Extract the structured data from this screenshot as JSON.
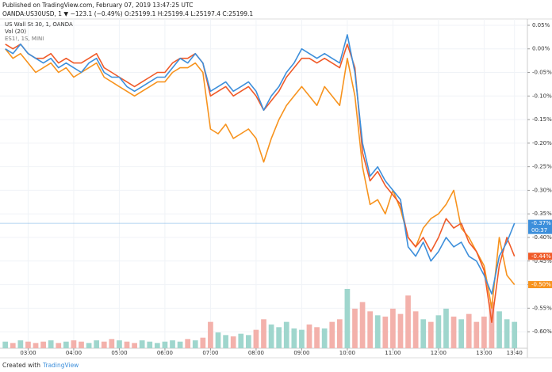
{
  "header": {
    "published": "Published on TradingView.com, February 07, 2019 13:47:25 UTC",
    "symbol_line": "OANDA:US30USD, 1 ▼ −123.1 (−0.49%) O:25199.1 H:25199.4 L:25197.4 C:25199.1"
  },
  "footer": {
    "created": "Created with",
    "brand": "TradingView"
  },
  "chart_data": {
    "type": "line",
    "log_scale": false,
    "grid": true,
    "x": [
      150,
      160,
      170,
      180,
      190,
      200,
      210,
      220,
      230,
      240,
      250,
      260,
      270,
      280,
      290,
      300,
      310,
      320,
      330,
      340,
      350,
      360,
      370,
      380,
      390,
      400,
      410,
      420,
      430,
      440,
      450,
      460,
      470,
      480,
      490,
      500,
      510,
      520,
      530,
      540,
      550,
      560,
      570,
      580,
      590,
      600,
      610,
      620,
      630,
      640,
      650,
      660,
      670,
      680,
      690,
      700,
      710,
      720,
      730,
      740,
      750,
      760,
      770,
      780,
      790,
      800,
      810,
      820
    ],
    "xlim": [
      143,
      837
    ],
    "xticks": [
      {
        "value": 180,
        "label": "03:00"
      },
      {
        "value": 240,
        "label": "04:00"
      },
      {
        "value": 300,
        "label": "05:00"
      },
      {
        "value": 360,
        "label": "06:00"
      },
      {
        "value": 420,
        "label": "07:00"
      },
      {
        "value": 480,
        "label": "08:00"
      },
      {
        "value": 540,
        "label": "09:00"
      },
      {
        "value": 600,
        "label": "10:00"
      },
      {
        "value": 660,
        "label": "11:00"
      },
      {
        "value": 720,
        "label": "12:00"
      },
      {
        "value": 780,
        "label": "13:00"
      },
      {
        "value": 820,
        "label": "13:40"
      }
    ],
    "ylim": [
      -0.63,
      0.06
    ],
    "yticks": [
      {
        "value": 0.05,
        "label": "0.05%"
      },
      {
        "value": 0,
        "label": "0.00%"
      },
      {
        "value": -0.05,
        "label": "-0.05%"
      },
      {
        "value": -0.1,
        "label": "-0.10%"
      },
      {
        "value": -0.15,
        "label": "-0.15%"
      },
      {
        "value": -0.2,
        "label": "-0.20%"
      },
      {
        "value": -0.25,
        "label": "-0.25%"
      },
      {
        "value": -0.3,
        "label": "-0.30%"
      },
      {
        "value": -0.35,
        "label": "-0.35%"
      },
      {
        "value": -0.4,
        "label": "-0.40%"
      },
      {
        "value": -0.45,
        "label": "-0.45%"
      },
      {
        "value": -0.5,
        "label": "-0.50%"
      },
      {
        "value": -0.55,
        "label": "-0.55%"
      },
      {
        "value": -0.6,
        "label": "-0.60%"
      }
    ],
    "series": [
      {
        "color": "#f7931e",
        "name": "ES1!, 1S, MINI",
        "last_label": "-0.50%",
        "values": [
          0.0,
          -0.02,
          -0.01,
          -0.03,
          -0.05,
          -0.04,
          -0.03,
          -0.05,
          -0.04,
          -0.06,
          -0.05,
          -0.04,
          -0.03,
          -0.06,
          -0.07,
          -0.08,
          -0.09,
          -0.1,
          -0.09,
          -0.08,
          -0.07,
          -0.07,
          -0.05,
          -0.04,
          -0.04,
          -0.03,
          -0.05,
          -0.17,
          -0.18,
          -0.16,
          -0.19,
          -0.18,
          -0.17,
          -0.19,
          -0.24,
          -0.19,
          -0.15,
          -0.12,
          -0.1,
          -0.08,
          -0.1,
          -0.12,
          -0.08,
          -0.1,
          -0.12,
          -0.02,
          -0.1,
          -0.25,
          -0.33,
          -0.32,
          -0.35,
          -0.3,
          -0.34,
          -0.4,
          -0.42,
          -0.38,
          -0.36,
          -0.35,
          -0.33,
          -0.3,
          -0.38,
          -0.4,
          -0.43,
          -0.46,
          -0.55,
          -0.4,
          -0.48,
          -0.5
        ]
      },
      {
        "color": "#f05a28",
        "last_label": "-0.44%",
        "values": [
          0.01,
          0.0,
          0.01,
          -0.01,
          -0.02,
          -0.02,
          -0.01,
          -0.03,
          -0.02,
          -0.03,
          -0.03,
          -0.02,
          -0.01,
          -0.04,
          -0.05,
          -0.06,
          -0.07,
          -0.08,
          -0.07,
          -0.06,
          -0.05,
          -0.05,
          -0.03,
          -0.02,
          -0.02,
          -0.01,
          -0.03,
          -0.1,
          -0.09,
          -0.08,
          -0.1,
          -0.09,
          -0.08,
          -0.1,
          -0.13,
          -0.11,
          -0.09,
          -0.06,
          -0.04,
          -0.02,
          -0.02,
          -0.03,
          -0.02,
          -0.03,
          -0.04,
          0.01,
          -0.04,
          -0.22,
          -0.28,
          -0.26,
          -0.29,
          -0.31,
          -0.33,
          -0.4,
          -0.42,
          -0.4,
          -0.43,
          -0.4,
          -0.36,
          -0.38,
          -0.37,
          -0.41,
          -0.43,
          -0.47,
          -0.58,
          -0.46,
          -0.4,
          -0.44
        ]
      },
      {
        "color": "#3d8fdb",
        "name": "US Wall St 30, 1, OANDA",
        "last_label": "-0.37%",
        "countdown": "00:37",
        "values": [
          0.0,
          -0.01,
          0.01,
          -0.01,
          -0.02,
          -0.03,
          -0.02,
          -0.04,
          -0.03,
          -0.04,
          -0.05,
          -0.03,
          -0.02,
          -0.05,
          -0.06,
          -0.06,
          -0.08,
          -0.09,
          -0.08,
          -0.07,
          -0.06,
          -0.06,
          -0.04,
          -0.02,
          -0.03,
          -0.01,
          -0.03,
          -0.09,
          -0.08,
          -0.07,
          -0.09,
          -0.08,
          -0.07,
          -0.09,
          -0.13,
          -0.1,
          -0.08,
          -0.05,
          -0.03,
          0.0,
          -0.01,
          -0.02,
          -0.01,
          -0.02,
          -0.03,
          0.03,
          -0.05,
          -0.2,
          -0.27,
          -0.25,
          -0.28,
          -0.3,
          -0.32,
          -0.42,
          -0.44,
          -0.41,
          -0.45,
          -0.43,
          -0.4,
          -0.42,
          -0.41,
          -0.44,
          -0.45,
          -0.48,
          -0.52,
          -0.44,
          -0.41,
          -0.37
        ]
      }
    ],
    "volume": {
      "name": "Vol (20)",
      "up_color": "#9fd6cd",
      "down_color": "#f3b1ab",
      "values": [
        5,
        4,
        6,
        5,
        4,
        5,
        6,
        4,
        5,
        6,
        5,
        4,
        6,
        5,
        7,
        6,
        5,
        4,
        6,
        5,
        4,
        5,
        6,
        5,
        7,
        6,
        8,
        20,
        12,
        10,
        9,
        11,
        10,
        14,
        22,
        18,
        16,
        20,
        15,
        14,
        18,
        16,
        15,
        20,
        22,
        45,
        30,
        35,
        28,
        25,
        24,
        30,
        26,
        40,
        28,
        22,
        20,
        25,
        30,
        24,
        22,
        26,
        20,
        24,
        35,
        28,
        22,
        20
      ]
    }
  }
}
